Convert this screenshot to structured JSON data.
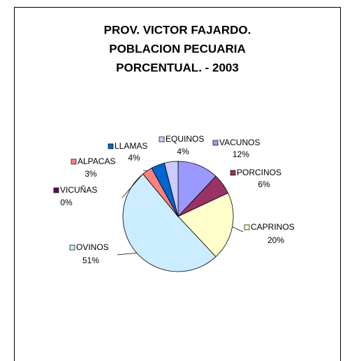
{
  "chart_data": {
    "type": "pie",
    "title_lines": [
      "PROV. VICTOR FAJARDO.",
      "POBLACION PECUARIA",
      "PORCENTUAL. - 2003"
    ],
    "categories": [
      "VACUNOS",
      "PORCINOS",
      "CAPRINOS",
      "OVINOS",
      "VICUÑAS",
      "ALPACAS",
      "LLAMAS",
      "EQUINOS"
    ],
    "values": [
      12,
      6,
      20,
      51,
      0,
      3,
      4,
      4
    ],
    "value_labels": [
      "12%",
      "6%",
      "20%",
      "51%",
      "0%",
      "3%",
      "4%",
      "4%"
    ],
    "colors": [
      "#9999ff",
      "#993366",
      "#ffffcc",
      "#ccecff",
      "#660066",
      "#ff8080",
      "#0066cc",
      "#ccccff"
    ]
  }
}
